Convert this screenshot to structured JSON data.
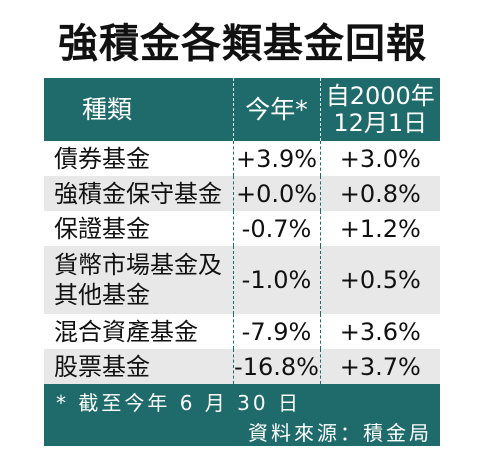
{
  "title": "強積金各類基金回報",
  "header": {
    "col1": "種類",
    "col2": "今年*",
    "col3_line1": "自2000年",
    "col3_line2": "12月1日"
  },
  "rows": [
    {
      "name": "債券基金",
      "ytd": "+3.9%",
      "since": "+3.0%"
    },
    {
      "name": "強積金保守基金",
      "ytd": "+0.0%",
      "since": "+0.8%"
    },
    {
      "name": "保證基金",
      "ytd": "-0.7%",
      "since": "+1.2%"
    },
    {
      "name_line1": "貨幣市場基金及",
      "name_line2": "其他基金",
      "ytd": "-1.0%",
      "since": "+0.5%"
    },
    {
      "name": "混合資產基金",
      "ytd": "-7.9%",
      "since": "+3.6%"
    },
    {
      "name": "股票基金",
      "ytd": "-16.8%",
      "since": "+3.7%"
    }
  ],
  "footer": {
    "note": "* 截至今年 6 月 30 日",
    "source": "資料來源：積金局"
  },
  "colors": {
    "header_bg": "#1f6b6b",
    "row_alt_bg": "#e8e8e8"
  }
}
